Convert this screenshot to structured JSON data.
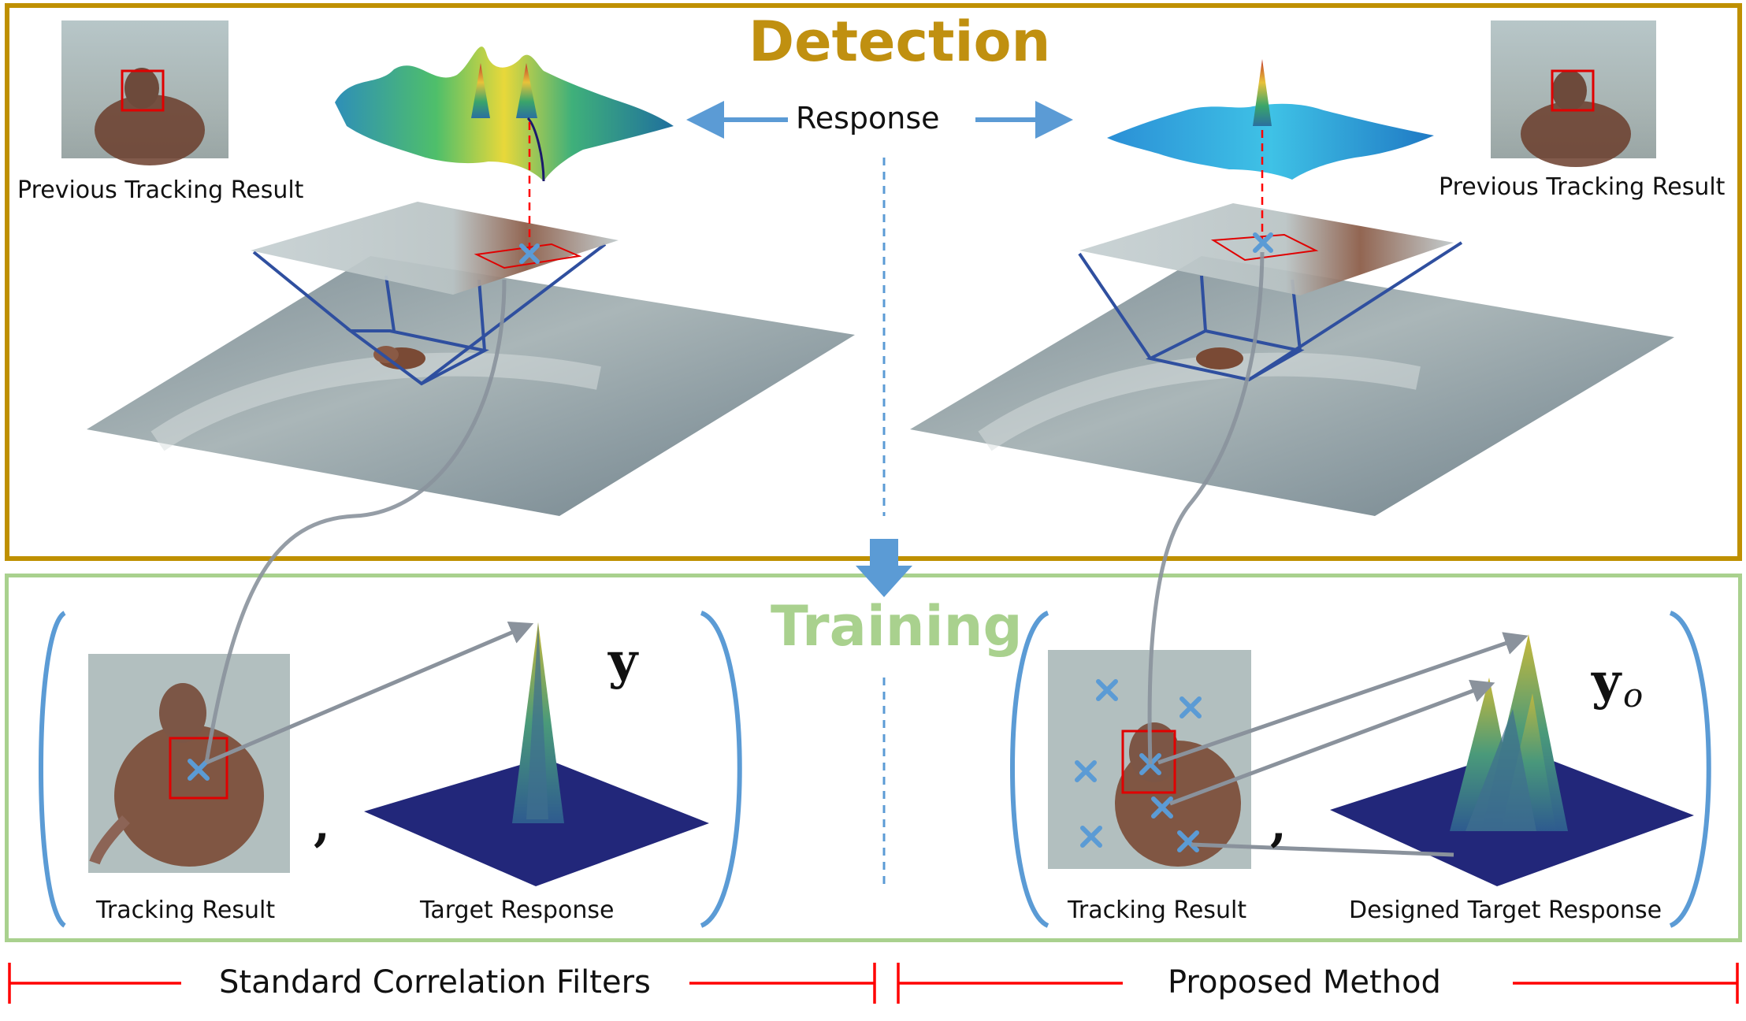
{
  "sections": {
    "detection": "Detection",
    "training": "Training"
  },
  "response_label": "Response",
  "labels": {
    "prev_left": "Previous Tracking Result",
    "prev_right": "Previous Tracking Result",
    "tracking_left": "Tracking Result",
    "tracking_right": "Tracking Result",
    "target_response": "Target Response",
    "designed_target_response": "Designed Target Response"
  },
  "math": {
    "y": "y",
    "y_base": "y",
    "y_sub": "o",
    "comma": ","
  },
  "footer": {
    "left": "Standard Correlation Filters",
    "right": "Proposed Method"
  },
  "colors": {
    "detection_border": "#bf9000",
    "detection_title": "#c09010",
    "training_border": "#a9d18e",
    "training_title": "#a9d18e",
    "blue_arrow": "#5b9bd5",
    "red_line": "#ff0000",
    "gray_curve": "#8a929c"
  }
}
